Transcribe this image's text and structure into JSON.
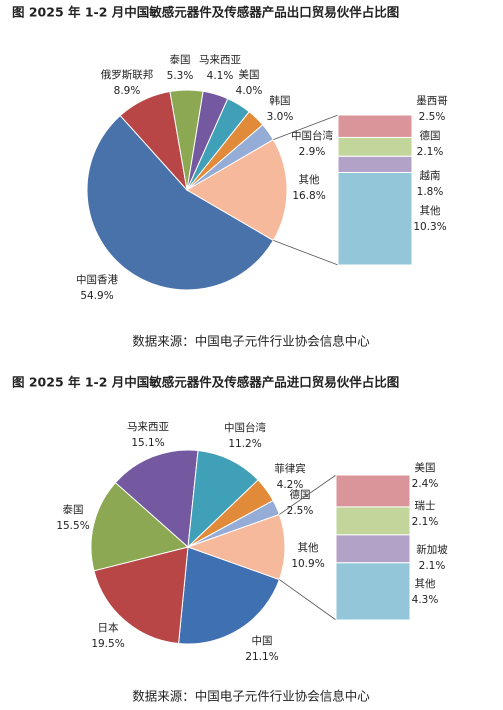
{
  "chart_data": [
    {
      "type": "pie",
      "title": "图   2025 年 1-2 月中国敏感元器件及传感器产品出口贸易伙伴占比图",
      "categories": [
        "中国香港",
        "俄罗斯联邦",
        "泰国",
        "马来西亚",
        "美国",
        "韩国",
        "中国台湾",
        "其他"
      ],
      "values": [
        54.9,
        8.9,
        5.3,
        4.1,
        4.0,
        3.0,
        2.9,
        16.8
      ],
      "value_labels": [
        "54.9%",
        "8.9%",
        "5.3%",
        "4.1%",
        "4.0%",
        "3.0%",
        "2.9%",
        "16.8%"
      ],
      "colors": [
        "#4a72aa",
        "#b84646",
        "#8ca852",
        "#7459a0",
        "#3fa0b8",
        "#e08a3a",
        "#95acd6",
        "#f7b99c"
      ],
      "breakdown": {
        "categories": [
          "墨西哥",
          "德国",
          "越南",
          "其他"
        ],
        "values": [
          2.5,
          2.1,
          1.8,
          10.3
        ],
        "value_labels": [
          "2.5%",
          "2.1%",
          "1.8%",
          "10.3%"
        ],
        "colors": [
          "#d9959a",
          "#c2d69b",
          "#b3a2c7",
          "#93c6d8"
        ]
      },
      "source": "数据来源：中国电子元件行业协会信息中心"
    },
    {
      "type": "pie",
      "title": "图   2025 年 1-2 月中国敏感元器件及传感器产品进口贸易伙伴占比图",
      "categories": [
        "中国",
        "日本",
        "泰国",
        "马来西亚",
        "中国台湾",
        "菲律宾",
        "德国",
        "其他"
      ],
      "values": [
        21.1,
        19.5,
        15.5,
        15.1,
        11.2,
        4.2,
        2.5,
        10.9
      ],
      "value_labels": [
        "21.1%",
        "19.5%",
        "15.5%",
        "15.1%",
        "11.2%",
        "4.2%",
        "2.5%",
        "10.9%"
      ],
      "colors": [
        "#3e70b2",
        "#b84646",
        "#8ca852",
        "#7459a0",
        "#3fa0b8",
        "#e08a3a",
        "#95acd6",
        "#f7b99c"
      ],
      "breakdown": {
        "categories": [
          "美国",
          "瑞士",
          "新加坡",
          "其他"
        ],
        "values": [
          2.4,
          2.1,
          2.1,
          4.3
        ],
        "value_labels": [
          "2.4%",
          "2.1%",
          "2.1%",
          "4.3%"
        ],
        "colors": [
          "#d9959a",
          "#c2d69b",
          "#b3a2c7",
          "#93c6d8"
        ]
      },
      "source": "数据来源：中国电子元件行业协会信息中心"
    }
  ]
}
